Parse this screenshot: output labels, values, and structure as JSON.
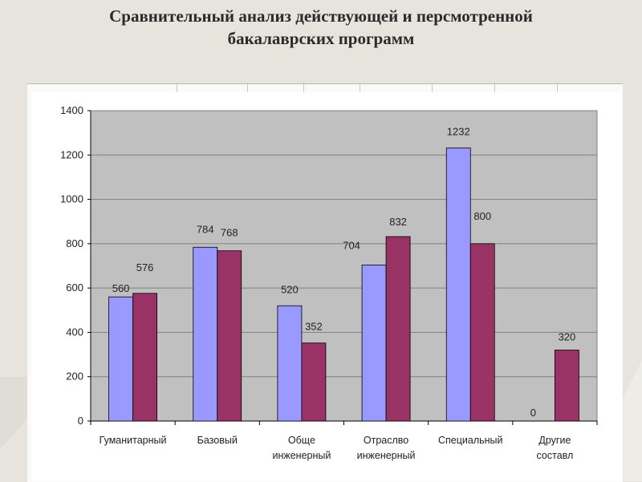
{
  "slide": {
    "title_line1": "Сравнительный анализ действующей и персмотренной",
    "title_line2": "бакалаврских программ"
  },
  "chart_data": {
    "type": "bar",
    "title": "",
    "xlabel": "",
    "ylabel": "",
    "ylim": [
      0,
      1400
    ],
    "yticks": [
      0,
      200,
      400,
      600,
      800,
      1000,
      1200,
      1400
    ],
    "grid": true,
    "categories": [
      [
        "Гуманитарный"
      ],
      [
        "Базовый"
      ],
      [
        "Обще",
        "инженерный"
      ],
      [
        "Отраслво",
        "инженерный"
      ],
      [
        "Специальный"
      ],
      [
        "Другие",
        "составл"
      ]
    ],
    "series": [
      {
        "values": [
          560,
          784,
          520,
          704,
          1232,
          0
        ],
        "color": "#9999ff"
      },
      {
        "values": [
          576,
          768,
          352,
          832,
          800,
          320
        ],
        "color": "#993366"
      }
    ],
    "colors": {
      "plot_background": "#c0c0c0",
      "grid": "#808080"
    }
  }
}
